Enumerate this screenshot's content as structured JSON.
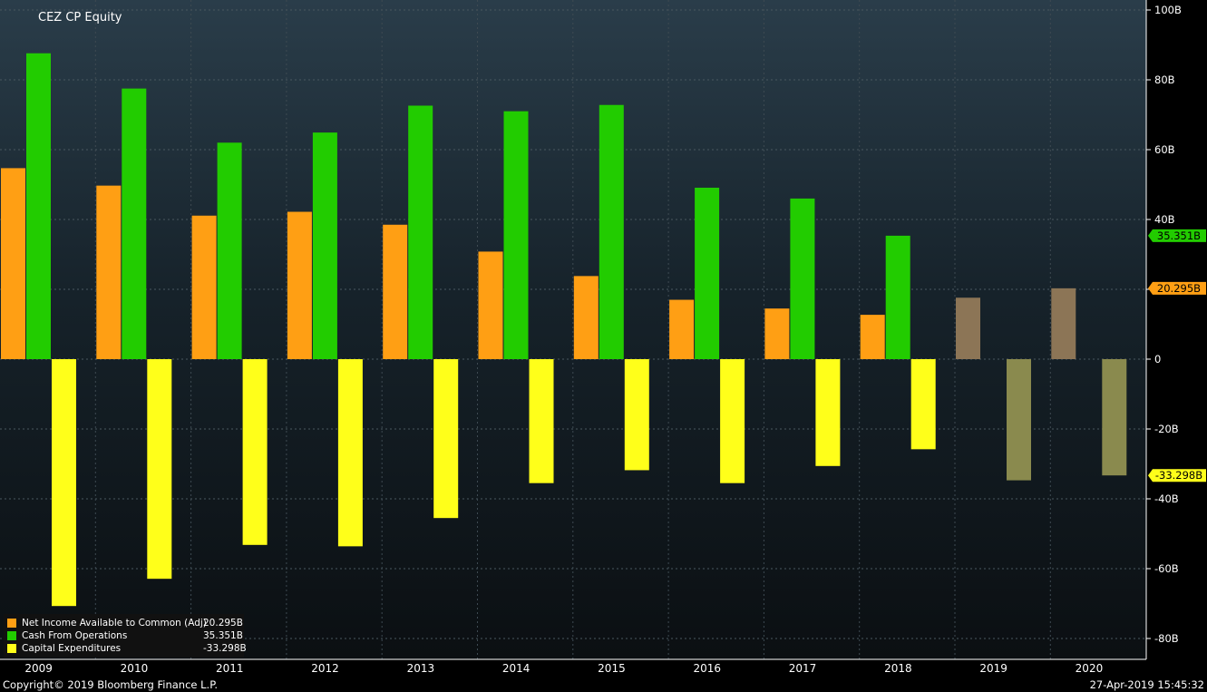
{
  "chart_data": {
    "type": "bar",
    "title": "CEZ CP Equity",
    "categories": [
      "2009",
      "2010",
      "2011",
      "2012",
      "2013",
      "2014",
      "2015",
      "2016",
      "2017",
      "2018",
      "2019",
      "2020"
    ],
    "series": [
      {
        "name": "Net Income Available to Common (Adj)",
        "color": "#ff9f14",
        "values": [
          54.7,
          49.7,
          41.1,
          42.2,
          38.5,
          30.8,
          23.8,
          17.0,
          14.5,
          12.7,
          17.6,
          20.295
        ],
        "estimated_color": "#8c7556",
        "estimated_from": "2019"
      },
      {
        "name": "Cash From Operations",
        "color": "#22cc00",
        "values": [
          87.6,
          77.5,
          62.0,
          64.9,
          72.6,
          71.0,
          72.8,
          49.1,
          46.0,
          35.351,
          null,
          null
        ]
      },
      {
        "name": "Capital Expenditures",
        "color": "#ffff1a",
        "values": [
          -70.7,
          -62.9,
          -53.2,
          -53.6,
          -45.5,
          -35.5,
          -31.8,
          -35.5,
          -30.6,
          -25.8,
          -34.7,
          -33.298
        ],
        "estimated_color": "#8a8a4e",
        "estimated_from": "2019"
      }
    ],
    "ylim": [
      -85,
      103
    ],
    "yticks": [
      {
        "v": 100,
        "label": "100B"
      },
      {
        "v": 80,
        "label": "80B"
      },
      {
        "v": 60,
        "label": "60B"
      },
      {
        "v": 40,
        "label": "40B"
      },
      {
        "v": 20,
        "label": "20B"
      },
      {
        "v": 0,
        "label": "0"
      },
      {
        "v": -20,
        "label": "-20B"
      },
      {
        "v": -40,
        "label": "-40B"
      },
      {
        "v": -60,
        "label": "-60B"
      },
      {
        "v": -80,
        "label": "-80B"
      }
    ],
    "last_value_tags": [
      {
        "v": 35.351,
        "label": "35.351B",
        "color": "#22cc00",
        "text_color": "#000"
      },
      {
        "v": 20.295,
        "label": "20.295B",
        "color": "#ff9f14",
        "text_color": "#000"
      },
      {
        "v": -33.298,
        "label": "-33.298B",
        "color": "#ffff1a",
        "text_color": "#000"
      }
    ],
    "grid": true,
    "legend_position": "bottom-left",
    "legend": [
      {
        "name": "Net Income Available to Common  (Adj)",
        "value": "20.295B",
        "color": "#ff9f14"
      },
      {
        "name": "Cash From Operations",
        "value": "35.351B",
        "color": "#22cc00"
      },
      {
        "name": "Capital Expenditures",
        "value": "-33.298B",
        "color": "#ffff1a"
      }
    ]
  },
  "footer": {
    "copyright": "Copyright© 2019 Bloomberg Finance L.P.",
    "timestamp": "27-Apr-2019 15:45:32"
  }
}
